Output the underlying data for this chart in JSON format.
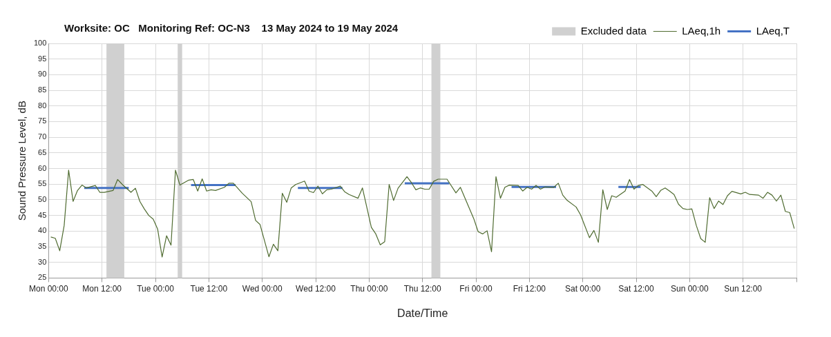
{
  "chart_data": {
    "type": "line",
    "title": "Worksite: OC   Monitoring Ref: OC-N3    13 May 2024 to 19 May 2024",
    "xlabel": "Date/Time",
    "ylabel": "Sound Pressure Level, dB",
    "xlim": [
      "2024-05-13T00:00",
      "2024-05-20T00:00"
    ],
    "xticks": [
      {
        "value": "2024-05-13T00:00",
        "label": "Mon 00:00"
      },
      {
        "value": "2024-05-13T12:00",
        "label": "Mon 12:00"
      },
      {
        "value": "2024-05-14T00:00",
        "label": "Tue 00:00"
      },
      {
        "value": "2024-05-14T12:00",
        "label": "Tue 12:00"
      },
      {
        "value": "2024-05-15T00:00",
        "label": "Wed 00:00"
      },
      {
        "value": "2024-05-15T12:00",
        "label": "Wed 12:00"
      },
      {
        "value": "2024-05-16T00:00",
        "label": "Thu 00:00"
      },
      {
        "value": "2024-05-16T12:00",
        "label": "Thu 12:00"
      },
      {
        "value": "2024-05-17T00:00",
        "label": "Fri 00:00"
      },
      {
        "value": "2024-05-17T12:00",
        "label": "Fri 12:00"
      },
      {
        "value": "2024-05-18T00:00",
        "label": "Sat 00:00"
      },
      {
        "value": "2024-05-18T12:00",
        "label": "Sat 12:00"
      },
      {
        "value": "2024-05-19T00:00",
        "label": "Sun 00:00"
      },
      {
        "value": "2024-05-19T12:00",
        "label": "Sun 12:00"
      },
      {
        "value": "2024-05-20T00:00",
        "label": null
      }
    ],
    "ylim": [
      25,
      100
    ],
    "yticks": [
      25,
      30,
      35,
      40,
      45,
      50,
      55,
      60,
      65,
      70,
      75,
      80,
      85,
      90,
      95,
      100
    ],
    "grid": true,
    "legend": "top right",
    "marker": "none",
    "line_style": "solid",
    "bands": [
      {
        "axis": "x",
        "from": "2024-05-13T13:00",
        "to": "2024-05-13T17:00",
        "label": "Excluded data",
        "color": "#d0d0d0"
      },
      {
        "axis": "x",
        "from": "2024-05-14T05:00",
        "to": "2024-05-14T06:00",
        "color": "#d0d0d0"
      },
      {
        "axis": "x",
        "from": "2024-05-16T14:00",
        "to": "2024-05-16T16:00",
        "color": "#d0d0d0"
      }
    ],
    "series": [
      {
        "name": "LAeq,1h",
        "color": "#4f6b30",
        "x": [
          "2024-05-13T00:30",
          "2024-05-13T01:30",
          "2024-05-13T02:30",
          "2024-05-13T03:30",
          "2024-05-13T04:30",
          "2024-05-13T05:30",
          "2024-05-13T06:30",
          "2024-05-13T07:30",
          "2024-05-13T08:30",
          "2024-05-13T10:30",
          "2024-05-13T11:30",
          "2024-05-13T12:30",
          "2024-05-13T14:30",
          "2024-05-13T15:30",
          "2024-05-13T16:30",
          "2024-05-13T18:30",
          "2024-05-13T19:30",
          "2024-05-13T20:30",
          "2024-05-13T21:30",
          "2024-05-13T22:30",
          "2024-05-13T23:30",
          "2024-05-14T00:30",
          "2024-05-14T01:30",
          "2024-05-14T02:30",
          "2024-05-14T03:30",
          "2024-05-14T04:30",
          "2024-05-14T05:30",
          "2024-05-14T07:30",
          "2024-05-14T08:30",
          "2024-05-14T09:30",
          "2024-05-14T10:30",
          "2024-05-14T11:30",
          "2024-05-14T12:30",
          "2024-05-14T13:30",
          "2024-05-14T15:30",
          "2024-05-14T16:30",
          "2024-05-14T17:30",
          "2024-05-14T19:30",
          "2024-05-14T21:30",
          "2024-05-14T22:30",
          "2024-05-14T23:30",
          "2024-05-15T01:30",
          "2024-05-15T02:30",
          "2024-05-15T03:30",
          "2024-05-15T04:30",
          "2024-05-15T05:30",
          "2024-05-15T06:30",
          "2024-05-15T07:30",
          "2024-05-15T09:30",
          "2024-05-15T10:30",
          "2024-05-15T11:30",
          "2024-05-15T12:30",
          "2024-05-15T13:30",
          "2024-05-15T14:30",
          "2024-05-15T15:30",
          "2024-05-15T17:30",
          "2024-05-15T18:30",
          "2024-05-15T19:30",
          "2024-05-15T21:30",
          "2024-05-15T22:30",
          "2024-05-16T00:30",
          "2024-05-16T01:30",
          "2024-05-16T02:30",
          "2024-05-16T03:30",
          "2024-05-16T04:30",
          "2024-05-16T05:30",
          "2024-05-16T06:30",
          "2024-05-16T08:30",
          "2024-05-16T09:30",
          "2024-05-16T10:30",
          "2024-05-16T11:30",
          "2024-05-16T12:30",
          "2024-05-16T13:30",
          "2024-05-16T14:30",
          "2024-05-16T15:30",
          "2024-05-16T17:30",
          "2024-05-16T19:30",
          "2024-05-16T20:30",
          "2024-05-16T23:30",
          "2024-05-17T00:30",
          "2024-05-17T01:30",
          "2024-05-17T02:30",
          "2024-05-17T03:30",
          "2024-05-17T04:30",
          "2024-05-17T05:30",
          "2024-05-17T06:30",
          "2024-05-17T07:30",
          "2024-05-17T09:30",
          "2024-05-17T10:30",
          "2024-05-17T11:30",
          "2024-05-17T12:30",
          "2024-05-17T13:30",
          "2024-05-17T14:30",
          "2024-05-17T15:30",
          "2024-05-17T17:30",
          "2024-05-17T18:30",
          "2024-05-17T19:30",
          "2024-05-17T20:30",
          "2024-05-17T22:30",
          "2024-05-17T23:30",
          "2024-05-18T01:30",
          "2024-05-18T02:30",
          "2024-05-18T03:30",
          "2024-05-18T04:30",
          "2024-05-18T05:30",
          "2024-05-18T06:30",
          "2024-05-18T07:30",
          "2024-05-18T09:30",
          "2024-05-18T10:30",
          "2024-05-18T11:30",
          "2024-05-18T12:30",
          "2024-05-18T13:30",
          "2024-05-18T15:30",
          "2024-05-18T16:30",
          "2024-05-18T17:30",
          "2024-05-18T18:30",
          "2024-05-18T19:30",
          "2024-05-18T20:30",
          "2024-05-18T21:30",
          "2024-05-18T22:30",
          "2024-05-18T23:30",
          "2024-05-19T00:30",
          "2024-05-19T01:30",
          "2024-05-19T02:30",
          "2024-05-19T03:30",
          "2024-05-19T04:30",
          "2024-05-19T05:30",
          "2024-05-19T06:30",
          "2024-05-19T07:30",
          "2024-05-19T08:30",
          "2024-05-19T09:30",
          "2024-05-19T11:30",
          "2024-05-19T12:30",
          "2024-05-19T13:30",
          "2024-05-19T15:30",
          "2024-05-19T16:30",
          "2024-05-19T17:30",
          "2024-05-19T18:30",
          "2024-05-19T19:30",
          "2024-05-19T20:30",
          "2024-05-19T21:30",
          "2024-05-19T22:30",
          "2024-05-19T23:30"
        ],
        "values": [
          38.1,
          37.7,
          33.7,
          41.8,
          59.5,
          49.5,
          53,
          54.7,
          53.8,
          54.6,
          52.4,
          52.4,
          53,
          56.5,
          55,
          52.4,
          53.7,
          49.5,
          47.1,
          45,
          43.8,
          40.6,
          31.7,
          38.5,
          35.5,
          59.5,
          54.7,
          56.3,
          56.5,
          52.8,
          56.7,
          52.8,
          53.2,
          53,
          54,
          55.3,
          55.3,
          52.1,
          49.4,
          43.4,
          42.1,
          31.8,
          35.8,
          33.7,
          52.1,
          49.2,
          53.8,
          54.9,
          56,
          52.8,
          52.3,
          54.4,
          51.9,
          53.2,
          53.4,
          54.4,
          52.6,
          51.7,
          50.5,
          53.8,
          41.2,
          39.1,
          35.6,
          36.6,
          54.9,
          49.8,
          53.7,
          57.4,
          55.5,
          53.2,
          53.8,
          53.4,
          53.4,
          55.9,
          56.6,
          56.6,
          52.2,
          54,
          44,
          39.8,
          39.1,
          40.1,
          33.4,
          57.4,
          50.5,
          54,
          54.7,
          54.6,
          52.8,
          54,
          53.4,
          54.6,
          53.4,
          54.1,
          54,
          55.3,
          51.5,
          49.8,
          47.7,
          45.2,
          37.9,
          40.2,
          36.4,
          53.2,
          46.9,
          51.3,
          50.8,
          52.8,
          56.5,
          53.4,
          54.6,
          54.9,
          52.8,
          51,
          53,
          53.8,
          52.8,
          51.7,
          48.6,
          47.2,
          46.9,
          47.1,
          41.8,
          37.6,
          36.4,
          50.7,
          47.2,
          49.6,
          48.5,
          51.3,
          52.7,
          51.9,
          52.4,
          51.7,
          51.5,
          50.5,
          52.4,
          51.5,
          49.6,
          51.5,
          46.3,
          45.9,
          40.8
        ]
      },
      {
        "name": "LAeq,T",
        "color": "#4472c4",
        "x": [
          "2024-05-13T08:00",
          "2024-05-13T18:00",
          "2024-05-14T01:00",
          "2024-05-14T08:00",
          "2024-05-14T18:00",
          "2024-05-15T01:00",
          "2024-05-15T08:00",
          "2024-05-15T18:00",
          "2024-05-16T01:00",
          "2024-05-16T08:00",
          "2024-05-16T18:00",
          "2024-05-17T01:00",
          "2024-05-17T08:00",
          "2024-05-17T18:00",
          "2024-05-18T01:00",
          "2024-05-18T08:00",
          "2024-05-18T13:00"
        ],
        "values": [
          53.8,
          53.8,
          null,
          54.7,
          54.7,
          null,
          53.8,
          53.8,
          null,
          55.3,
          55.3,
          null,
          54.1,
          54.1,
          null,
          54.1,
          54.1
        ]
      }
    ]
  }
}
